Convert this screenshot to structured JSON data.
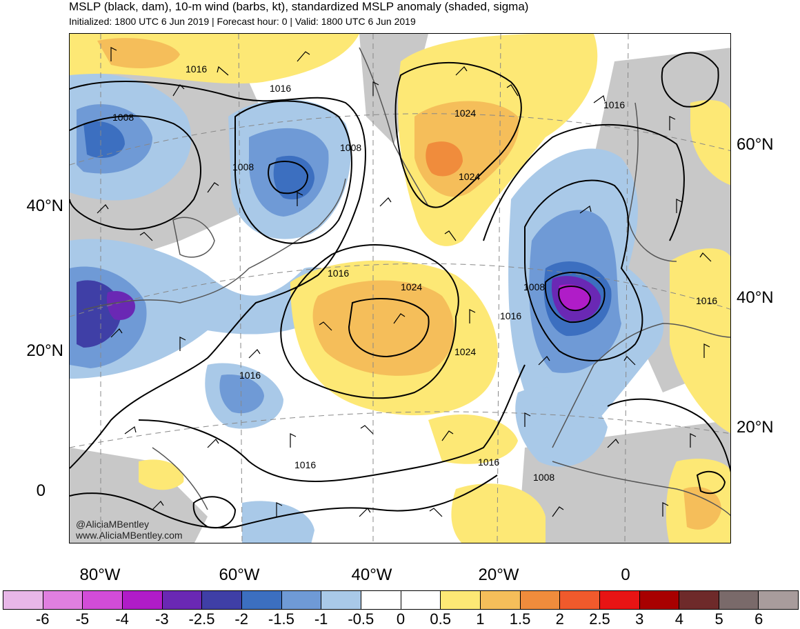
{
  "header": {
    "title": "MSLP (black, dam), 10-m wind (barbs, kt), standardized MSLP anomaly (shaded, sigma)",
    "subtitle": "Initialized: 1800 UTC 6 Jun 2019 | Forecast hour: 0 | Valid: 1800 UTC 6 Jun 2019"
  },
  "map": {
    "lat_labels_left": [
      "40°N",
      "20°N",
      "0"
    ],
    "lat_labels_right": [
      "60°N",
      "40°N",
      "20°N"
    ],
    "lon_labels": [
      "80°W",
      "60°W",
      "40°W",
      "20°W",
      "0"
    ],
    "contour_labels": [
      "1016",
      "1016",
      "1008",
      "1008",
      "1008",
      "1024",
      "1024",
      "1016",
      "1024",
      "1024",
      "1016",
      "1008",
      "1016",
      "1016",
      "1016",
      "1016",
      "1016",
      "1008"
    ],
    "credit_handle": "@AliciaMBentley",
    "credit_site": "www.AliciaMBentley.com",
    "colors": {
      "land_gray": "#c8c8c8",
      "coast": "#555555",
      "contour": "#000000"
    }
  },
  "colorbar": {
    "labels": [
      "-6",
      "-5",
      "-4",
      "-3",
      "-2.5",
      "-2",
      "-1.5",
      "-1",
      "-0.5",
      "0",
      "0.5",
      "1",
      "1.5",
      "2",
      "2.5",
      "3",
      "4",
      "5",
      "6"
    ],
    "colors": [
      "#e8b7e8",
      "#e07fe0",
      "#d24cd8",
      "#b01cc8",
      "#6a28b4",
      "#3f3fa6",
      "#3c6fc0",
      "#6f9ad6",
      "#a9c9e8",
      "#ffffff",
      "#ffffff",
      "#fde875",
      "#f5be5a",
      "#f08c3c",
      "#f05a2c",
      "#e81414",
      "#a80000",
      "#6e2a2a",
      "#7a6a6a",
      "#a89c9c"
    ]
  }
}
